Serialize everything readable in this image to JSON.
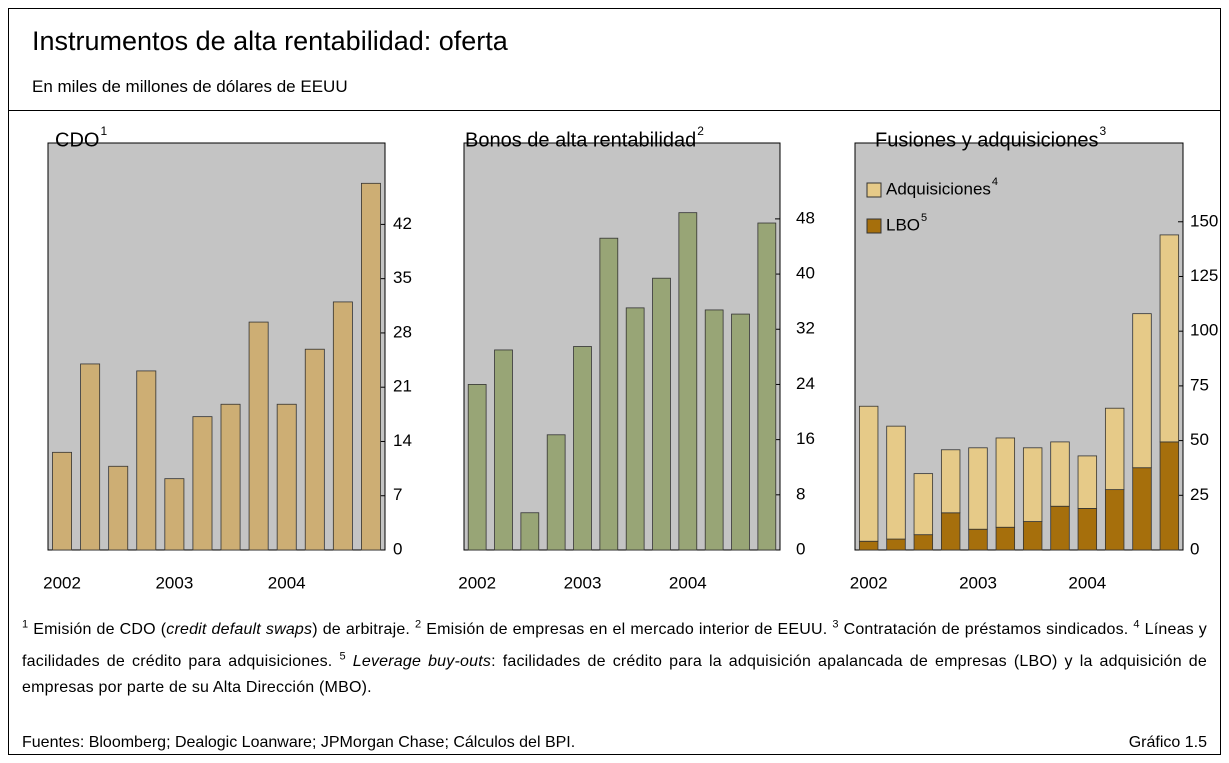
{
  "header": {
    "title": "Instrumentos de alta rentabilidad: oferta",
    "subtitle": "En miles de millones de dólares de EEUU"
  },
  "chart_data": [
    {
      "type": "bar",
      "title": "CDO",
      "title_note": "1",
      "categories": [
        "2002",
        null,
        null,
        null,
        "2003",
        null,
        null,
        null,
        "2004",
        null,
        null,
        null
      ],
      "values": [
        12.6,
        24.0,
        10.8,
        23.1,
        9.2,
        17.2,
        18.8,
        29.4,
        18.8,
        25.9,
        32.0,
        47.3
      ],
      "color": "#cdae74",
      "ylim": [
        0,
        52.5
      ],
      "yticks": [
        0,
        7,
        14,
        21,
        28,
        35,
        42
      ]
    },
    {
      "type": "bar",
      "title": "Bonos de alta rentabilidad",
      "title_note": "2",
      "categories": [
        "2002",
        null,
        null,
        null,
        "2003",
        null,
        null,
        null,
        "2004",
        null,
        null,
        null
      ],
      "values": [
        24.0,
        29.0,
        5.4,
        16.7,
        29.5,
        45.2,
        35.1,
        39.4,
        48.9,
        34.8,
        34.2,
        47.4
      ],
      "color": "#98a576",
      "ylim": [
        0,
        59
      ],
      "yticks": [
        0,
        8,
        16,
        24,
        32,
        40,
        48
      ]
    },
    {
      "type": "bar",
      "stacked": true,
      "title": "Fusiones y adquisiciones",
      "title_note": "3",
      "categories": [
        "2002",
        null,
        null,
        null,
        "2003",
        null,
        null,
        null,
        "2004",
        null,
        null,
        null
      ],
      "series": [
        {
          "name": "LBO",
          "name_note": "5",
          "color": "#a66f0c",
          "values": [
            4.0,
            5.0,
            7.0,
            17.0,
            9.5,
            10.4,
            13.0,
            20.0,
            19.0,
            27.6,
            37.6,
            49.4
          ]
        },
        {
          "name": "Adquisiciones",
          "name_note": "4",
          "color": "#e6ca88",
          "values": [
            61.7,
            51.6,
            27.9,
            28.8,
            37.2,
            40.8,
            33.7,
            29.4,
            24.0,
            37.2,
            70.4,
            94.6
          ]
        }
      ],
      "legend": "upper left",
      "ylim": [
        0,
        186
      ],
      "yticks": [
        0,
        25,
        50,
        75,
        100,
        125,
        150
      ]
    }
  ],
  "footnotes": [
    {
      "mark": "1",
      "segments": [
        {
          "text": "Emisión de CDO ("
        },
        {
          "text": "credit default swaps",
          "italic": true
        },
        {
          "text": ") de arbitraje."
        }
      ]
    },
    {
      "mark": "2",
      "segments": [
        {
          "text": "Emisión de empresas en el mercado interior de EEUU."
        }
      ]
    },
    {
      "mark": "3",
      "segments": [
        {
          "text": "Contratación de préstamos sindicados."
        }
      ]
    },
    {
      "mark": "4",
      "segments": [
        {
          "text": "Líneas y facilidades de crédito para adquisiciones."
        }
      ]
    },
    {
      "mark": "5",
      "segments": [
        {
          "text": "Leverage buy-outs",
          "italic": true
        },
        {
          "text": ": facilidades de crédito para la adquisición apalancada de empresas (LBO) y la adquisición de empresas por parte de su Alta Dirección (MBO)."
        }
      ]
    }
  ],
  "sources": "Fuentes: Bloomberg; Dealogic Loanware; JPMorgan Chase; Cálculos del BPI.",
  "figure_label": "Gráfico 1.5"
}
